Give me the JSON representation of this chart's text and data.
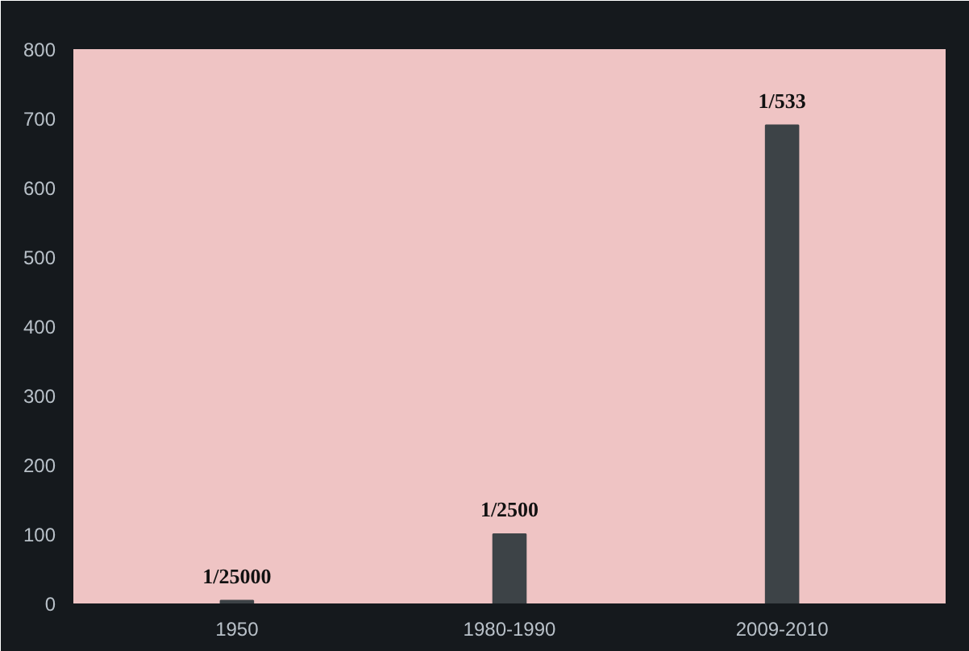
{
  "chart_data": {
    "type": "bar",
    "categories": [
      "1950",
      "1980-1990",
      "2009-2010"
    ],
    "values": [
      4,
      100,
      690
    ],
    "color": "#3d4347",
    "value_labels": [
      "1/25000",
      "1/2500",
      "1/533"
    ],
    "ylim": [
      0,
      800
    ],
    "yticks": [
      0,
      100,
      200,
      300,
      400,
      500,
      600,
      700,
      800
    ],
    "grid": false
  }
}
